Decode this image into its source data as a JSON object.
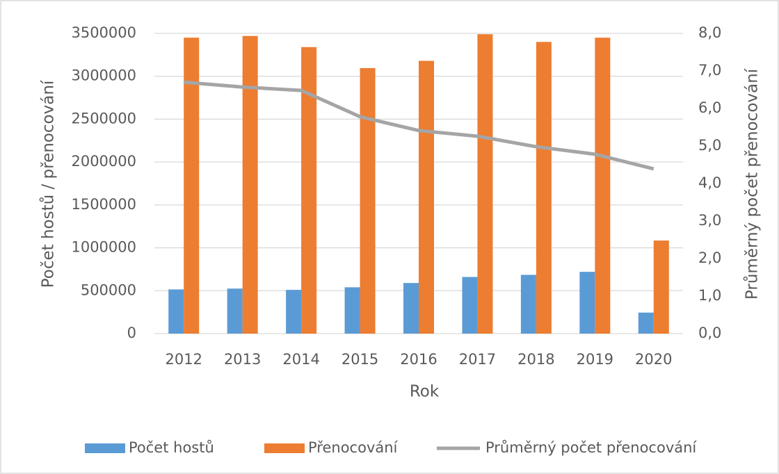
{
  "chart_data": {
    "type": "bar",
    "x_label": "Rok",
    "y_label": "Počet hostů / přenocování",
    "y2_label": "Průměrný počet přenocování",
    "categories": [
      "2012",
      "2013",
      "2014",
      "2015",
      "2016",
      "2017",
      "2018",
      "2019",
      "2020"
    ],
    "series": [
      {
        "name": "Počet hostů",
        "color": "#5b9bd5",
        "type": "bar",
        "values": [
          515000,
          525000,
          510000,
          540000,
          590000,
          660000,
          685000,
          720000,
          245000
        ]
      },
      {
        "name": "Přenocování",
        "color": "#ed7d31",
        "type": "bar",
        "values": [
          3450000,
          3470000,
          3340000,
          3095000,
          3180000,
          3490000,
          3400000,
          3450000,
          1085000
        ]
      },
      {
        "name": "Průměrný počet přenocování",
        "color": "#a5a5a5",
        "type": "line",
        "axis": "y2",
        "values": [
          6.7,
          6.57,
          6.48,
          5.78,
          5.41,
          5.26,
          4.98,
          4.78,
          4.39
        ]
      }
    ],
    "ylim": [
      0,
      3500000
    ],
    "yticks": [
      0,
      500000,
      1000000,
      1500000,
      2000000,
      2500000,
      3000000,
      3500000
    ],
    "y2lim": [
      0,
      8
    ],
    "y2ticks": [
      {
        "value": 0,
        "label": "0,0"
      },
      {
        "value": 1,
        "label": "1,0"
      },
      {
        "value": 2,
        "label": "2,0"
      },
      {
        "value": 3,
        "label": "3,0"
      },
      {
        "value": 4,
        "label": "4,0"
      },
      {
        "value": 5,
        "label": "5,0"
      },
      {
        "value": 6,
        "label": "6,0"
      },
      {
        "value": 7,
        "label": "7,0"
      },
      {
        "value": 8,
        "label": "8,0"
      }
    ],
    "grid": true,
    "legend": "bottom"
  }
}
